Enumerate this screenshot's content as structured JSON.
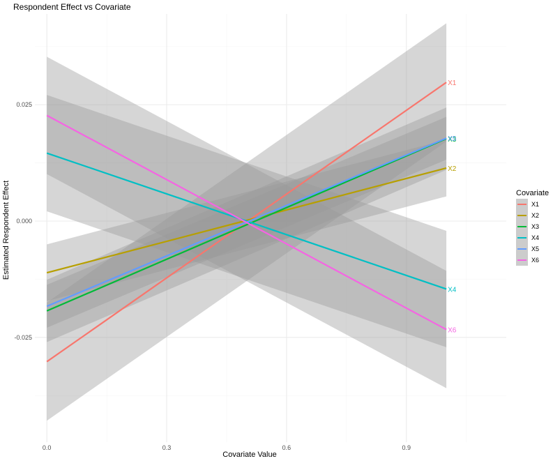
{
  "chart_data": {
    "type": "line",
    "title": "Respondent Effect vs Covariate",
    "xlabel": "Covariate Value",
    "ylabel": "Estimated Respondent Effect",
    "xlim": [
      -0.03,
      1.15
    ],
    "ylim": [
      -0.0475,
      0.0445
    ],
    "x_ticks": [
      0.0,
      0.3,
      0.6,
      0.9
    ],
    "x_tick_labels": [
      "0.0",
      "0.3",
      "0.6",
      "0.9"
    ],
    "y_ticks": [
      -0.025,
      0.0,
      0.025
    ],
    "y_tick_labels": [
      "-0.025",
      "0.000",
      "0.025"
    ],
    "grid": true,
    "legend": {
      "title": "Covariate",
      "position": "right"
    },
    "series": [
      {
        "name": "X1",
        "color": "#F8766D",
        "x": [
          0,
          1
        ],
        "y": [
          -0.0302,
          0.0298
        ],
        "band_halfwidth": [
          0.0127,
          0.0127
        ],
        "end_label": "X1"
      },
      {
        "name": "X2",
        "color": "#B79F00",
        "x": [
          0,
          1
        ],
        "y": [
          -0.0111,
          0.0114
        ],
        "band_halfwidth": [
          0.0061,
          0.0061
        ],
        "end_label": "X2"
      },
      {
        "name": "X3",
        "color": "#00BA38",
        "x": [
          0,
          1
        ],
        "y": [
          -0.0193,
          0.0177
        ],
        "band_halfwidth": [
          0.0067,
          0.0067
        ],
        "end_label": "X3"
      },
      {
        "name": "X4",
        "color": "#00BFC4",
        "x": [
          0,
          1
        ],
        "y": [
          0.0146,
          -0.0146
        ],
        "band_halfwidth": [
          0.0125,
          0.0125
        ],
        "end_label": "X4"
      },
      {
        "name": "X5",
        "color": "#619CFF",
        "x": [
          0,
          1
        ],
        "y": [
          -0.0183,
          0.0178
        ],
        "band_halfwidth": [
          0.0046,
          0.0046
        ],
        "end_label": "X5"
      },
      {
        "name": "X6",
        "color": "#F564E3",
        "x": [
          0,
          1
        ],
        "y": [
          0.0227,
          -0.0233
        ],
        "band_halfwidth": [
          0.0126,
          0.0126
        ],
        "end_label": "X6"
      }
    ]
  }
}
